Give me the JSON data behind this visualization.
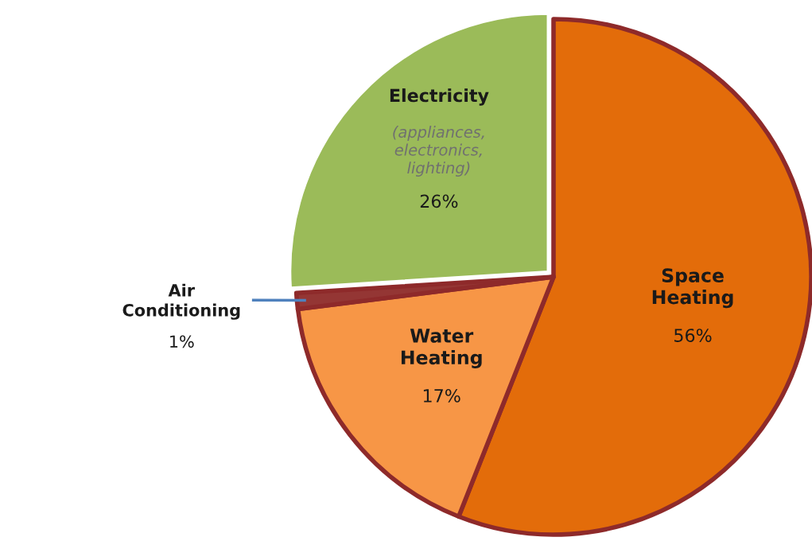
{
  "chart_data": {
    "type": "pie",
    "categories": [
      "Space\nHeating",
      "Water\nHeating",
      "Air\nConditioning",
      "Electricity"
    ],
    "values": [
      56,
      17,
      1,
      26
    ],
    "colors": [
      "#e36c0a",
      "#f79646",
      "#943634",
      "#9bbb59"
    ],
    "value_labels": [
      "56%",
      "17%",
      "1%",
      "26%"
    ],
    "annotations": [
      "(appliances,\nelectronics,\nlighting)"
    ]
  }
}
